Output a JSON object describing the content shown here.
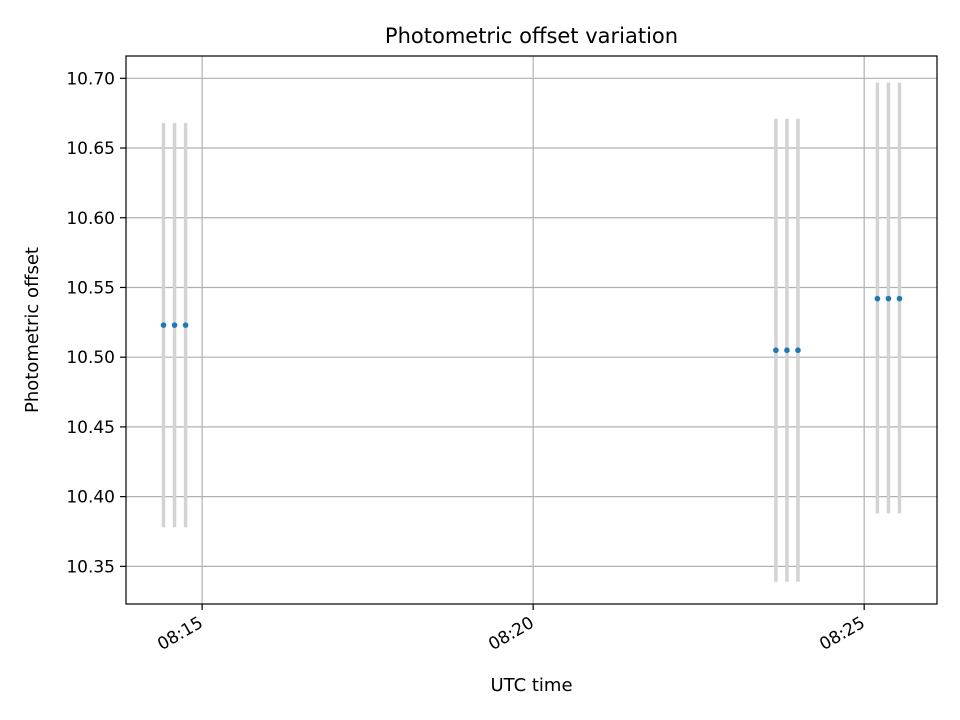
{
  "chart_data": {
    "type": "scatter",
    "title": "Photometric offset variation",
    "xlabel": "UTC time",
    "ylabel": "Photometric offset",
    "x_format": "HH:MM",
    "x_ticks": [
      "08:15",
      "08:20",
      "08:25"
    ],
    "xlim": [
      "08:13:51",
      "08:26:06"
    ],
    "y_ticks": [
      "10.35",
      "10.40",
      "10.45",
      "10.50",
      "10.55",
      "10.60",
      "10.65",
      "10.70"
    ],
    "ylim": [
      10.323,
      10.716
    ],
    "grid": true,
    "legend": "none",
    "series": [
      {
        "color": "#1f77b4",
        "errorbar_color": "#d3d3d3",
        "points": [
          {
            "x": "08:14:25",
            "y": 10.523,
            "err_low": 10.378,
            "err_high": 10.668
          },
          {
            "x": "08:14:35",
            "y": 10.523,
            "err_low": 10.378,
            "err_high": 10.668
          },
          {
            "x": "08:14:45",
            "y": 10.523,
            "err_low": 10.378,
            "err_high": 10.668
          },
          {
            "x": "08:23:40",
            "y": 10.505,
            "err_low": 10.339,
            "err_high": 10.671
          },
          {
            "x": "08:23:50",
            "y": 10.505,
            "err_low": 10.339,
            "err_high": 10.671
          },
          {
            "x": "08:24:00",
            "y": 10.505,
            "err_low": 10.339,
            "err_high": 10.671
          },
          {
            "x": "08:25:12",
            "y": 10.542,
            "err_low": 10.388,
            "err_high": 10.697
          },
          {
            "x": "08:25:22",
            "y": 10.542,
            "err_low": 10.388,
            "err_high": 10.697
          },
          {
            "x": "08:25:32",
            "y": 10.542,
            "err_low": 10.388,
            "err_high": 10.697
          }
        ]
      }
    ]
  }
}
